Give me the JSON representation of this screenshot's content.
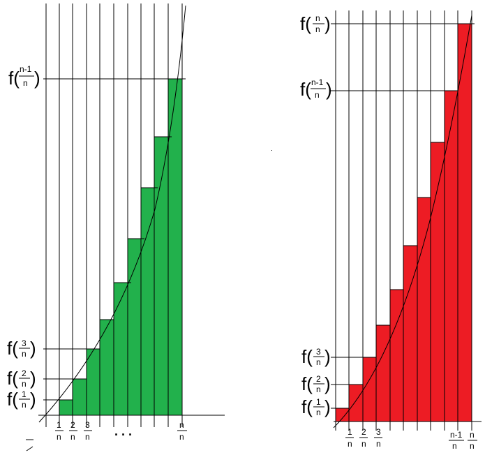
{
  "left_panel": {
    "rect_color": "#22b14c",
    "labels": {
      "f1": {
        "f": "f(",
        "num": "1",
        "den": "n",
        "close": ")"
      },
      "f2": {
        "f": "f(",
        "num": "2",
        "den": "n",
        "close": ")"
      },
      "f3": {
        "f": "f(",
        "num": "3",
        "den": "n",
        "close": ")"
      },
      "fnm1": {
        "f": "f(",
        "num": "n-1",
        "den": "n",
        "close": ")"
      }
    },
    "x_ticks": [
      {
        "num": "1",
        "den": "n"
      },
      {
        "num": "2",
        "den": "n"
      },
      {
        "num": "3",
        "den": "n"
      },
      {
        "num": "n",
        "den": "n"
      }
    ],
    "dots": ". . ."
  },
  "right_panel": {
    "rect_color": "#ed1c24",
    "labels": {
      "f1": {
        "f": "f(",
        "num": "1",
        "den": "n",
        "close": ")"
      },
      "f2": {
        "f": "f(",
        "num": "2",
        "den": "n",
        "close": ")"
      },
      "f3": {
        "f": "f(",
        "num": "3",
        "den": "n",
        "close": ")"
      },
      "fnm1": {
        "f": "f(",
        "num": "n-1",
        "den": "n",
        "close": ")"
      },
      "fn": {
        "f": "f(",
        "num": "n",
        "den": "n",
        "close": ")"
      }
    },
    "x_ticks": [
      {
        "num": "1",
        "den": "n"
      },
      {
        "num": "2",
        "den": "n"
      },
      {
        "num": "3",
        "den": "n"
      },
      {
        "num": "n-1",
        "den": "n"
      },
      {
        "num": "n",
        "den": "n"
      }
    ]
  }
}
